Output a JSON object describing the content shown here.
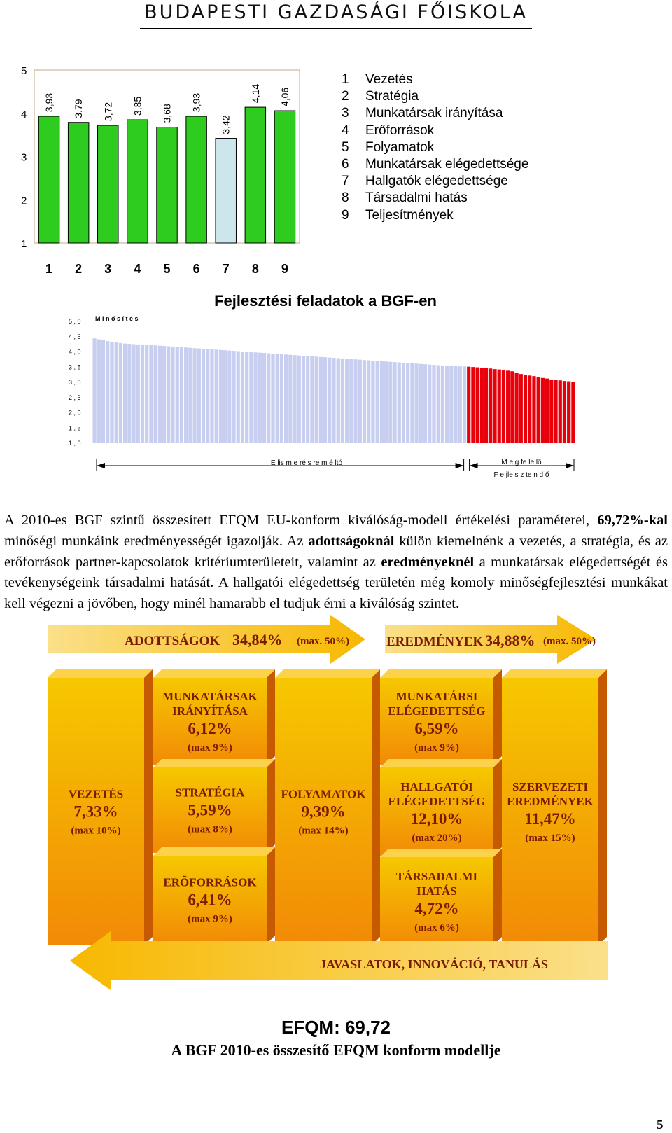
{
  "header": {
    "title": "BUDAPESTI GAZDASÁGI FŐISKOLA"
  },
  "chart_data": [
    {
      "type": "bar",
      "categories": [
        "1",
        "2",
        "3",
        "4",
        "5",
        "6",
        "7",
        "8",
        "9"
      ],
      "values": [
        3.93,
        3.79,
        3.72,
        3.85,
        3.68,
        3.93,
        3.42,
        4.14,
        4.06
      ],
      "value_labels": [
        "3,93",
        "3,79",
        "3,72",
        "3,85",
        "3,68",
        "3,93",
        "3,42",
        "4,14",
        "4,06"
      ],
      "ylim": [
        1,
        5
      ],
      "yticks": [
        "1",
        "2",
        "3",
        "4",
        "5"
      ],
      "highlight_index": 6,
      "colors": {
        "bar": "#2ecc1f",
        "highlight": "#cde6ec",
        "plot_bg": "#ffffff",
        "border": "#c6a888"
      },
      "legend": [
        {
          "num": "1",
          "label": "Vezetés"
        },
        {
          "num": "2",
          "label": "Stratégia"
        },
        {
          "num": "3",
          "label": "Munkatársak irányítása"
        },
        {
          "num": "4",
          "label": "Erőforrások"
        },
        {
          "num": "5",
          "label": "Folyamatok"
        },
        {
          "num": "6",
          "label": "Munkatársak elégedettsége"
        },
        {
          "num": "7",
          "label": "Hallgatók elégedettsége"
        },
        {
          "num": "8",
          "label": "Társadalmi hatás"
        },
        {
          "num": "9",
          "label": "Teljesítmények"
        }
      ]
    },
    {
      "type": "bar",
      "title": "Fejlesztési feladatok a BGF-en",
      "series_label": "M i n ő s í t é s",
      "ylim": [
        1,
        5
      ],
      "yticks": [
        "1 , 0",
        "1 , 5",
        "2 , 0",
        "2 , 5",
        "3 , 0",
        "3 , 5",
        "4 , 0",
        "4 , 5",
        "5 , 0"
      ],
      "green_values": [
        4.42,
        4.39,
        4.36,
        4.33,
        4.31,
        4.29,
        4.27,
        4.25,
        4.24,
        4.23,
        4.22,
        4.22,
        4.21,
        4.2,
        4.19,
        4.18,
        4.17,
        4.16,
        4.15,
        4.14,
        4.13,
        4.12,
        4.11,
        4.1,
        4.09,
        4.08,
        4.07,
        4.06,
        4.05,
        4.04,
        4.03,
        4.02,
        4.01,
        4.0,
        3.99,
        3.98,
        3.97,
        3.96,
        3.95,
        3.94,
        3.93,
        3.92,
        3.91,
        3.9,
        3.89,
        3.88,
        3.87,
        3.86,
        3.85,
        3.84,
        3.83,
        3.82,
        3.81,
        3.8,
        3.79,
        3.78,
        3.77,
        3.76,
        3.75,
        3.74,
        3.73,
        3.72,
        3.71,
        3.7,
        3.69,
        3.68,
        3.67,
        3.66,
        3.65,
        3.64,
        3.63,
        3.62,
        3.61,
        3.6,
        3.59,
        3.58,
        3.57,
        3.56,
        3.55,
        3.54,
        3.53,
        3.52,
        3.51,
        3.51,
        3.5,
        3.5
      ],
      "red_values": [
        3.49,
        3.48,
        3.47,
        3.45,
        3.44,
        3.43,
        3.41,
        3.4,
        3.38,
        3.36,
        3.34,
        3.3,
        3.25,
        3.22,
        3.2,
        3.18,
        3.15,
        3.12,
        3.1,
        3.07,
        3.05,
        3.04,
        3.02,
        3.01,
        3.0
      ],
      "colors": {
        "green_bar": "#c7cef0",
        "red_bar": "#e8000b"
      },
      "brackets": [
        {
          "label": "E lis m e ré s re  m é ltó"
        },
        {
          "label": "M e g fe le lő"
        }
      ],
      "sub_label": "F e jle s z te n d ő"
    }
  ],
  "paragraph": {
    "p1": "A 2010-es BGF szintű összesített EFQM EU-konform kiválóság-modell értékelési paraméterei, ",
    "b1": "69,72%-kal",
    "p2": " minőségi munkáink eredményességét igazolják. Az ",
    "b2": "adottságoknál",
    "p3": " külön kiemelnénk a vezetés, a stratégia, és az erőforrások partner-kapcsolatok kritériumterületeit, valamint az ",
    "b3": "eredményeknél",
    "p4": " a munkatársak elégedettségét és tevékenységeink társadalmi hatását. A hallgatói elégedettség területén még komoly minőségfejlesztési munkákat kell végezni a jövőben, hogy minél hamarabb el tudjuk érni a kiválóság szintet."
  },
  "model": {
    "enablers_arrow": {
      "label": "ADOTTSÁGOK",
      "value": "34,84%",
      "max": "(max. 50%)"
    },
    "results_arrow": {
      "label": "EREDMÉNYEK",
      "value": "34,88%",
      "max": "(max. 50%)"
    },
    "bottom_arrow": {
      "label": "JAVASLATOK, INNOVÁCIÓ, TANULÁS"
    },
    "boxes": {
      "vezetes": {
        "lines": [
          "VEZETÉS"
        ],
        "value": "7,33%",
        "max": "(max 10%)"
      },
      "munkatarsak_iranyitasa": {
        "lines": [
          "MUNKATÁRSAK",
          "IRÁNYÍTÁSA"
        ],
        "value": "6,12%",
        "max": "(max 9%)"
      },
      "strategia": {
        "lines": [
          "STRATÉGIA"
        ],
        "value": "5,59%",
        "max": "(max 8%)"
      },
      "eroforrasok": {
        "lines": [
          "ERÕFORRÁSOK"
        ],
        "value": "6,41%",
        "max": "(max 9%)"
      },
      "folyamatok": {
        "lines": [
          "FOLYAMATOK"
        ],
        "value": "9,39%",
        "max": "(max 14%)"
      },
      "munkatarsi_elegedettseg": {
        "lines": [
          "MUNKATÁRSI",
          "ELÉGEDETTSÉG"
        ],
        "value": "6,59%",
        "max": "(max 9%)"
      },
      "hallgatoi_elegedettseg": {
        "lines": [
          "HALLGATÓI",
          "ELÉGEDETTSÉG"
        ],
        "value": "12,10%",
        "max": "(max 20%)"
      },
      "tarsadalmi_hatas": {
        "lines": [
          "TÁRSADALMI",
          "HATÁS"
        ],
        "value": "4,72%",
        "max": "(max 6%)"
      },
      "szervezeti_eredmenyek": {
        "lines": [
          "SZERVEZETI",
          "EREDMÉNYEK"
        ],
        "value": "11,47%",
        "max": "(max 15%)"
      }
    },
    "colors": {
      "box_top": "#f6c800",
      "box_bottom": "#f28a06",
      "text": "#7a1a00",
      "arrow": "#f9b400"
    }
  },
  "efqm_score": "EFQM: 69,72",
  "caption": "A BGF 2010-es összesítő EFQM konform modellje",
  "page_number": "5"
}
